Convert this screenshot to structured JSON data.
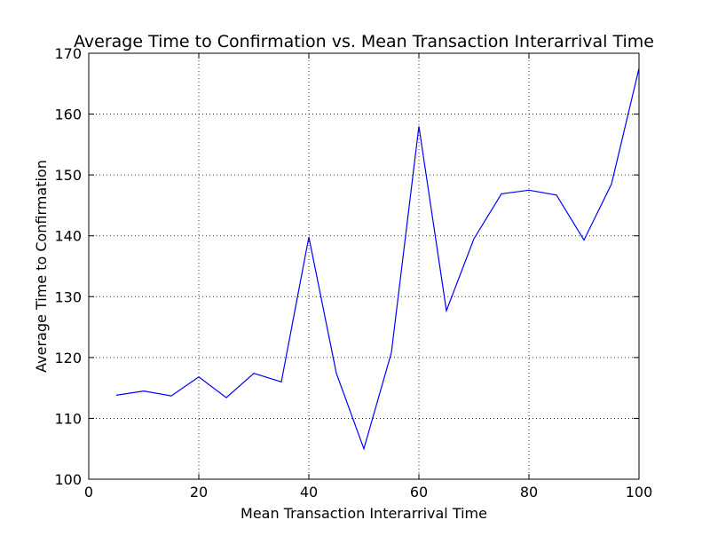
{
  "chart_data": {
    "type": "line",
    "title": "Average Time to Confirmation vs. Mean Transaction Interarrival Time",
    "xlabel": "Mean Transaction Interarrival Time",
    "ylabel": "Average Time to Confirmation",
    "xlim": [
      0,
      100
    ],
    "ylim": [
      100,
      170
    ],
    "xticks": [
      0,
      20,
      40,
      60,
      80,
      100
    ],
    "yticks": [
      100,
      110,
      120,
      130,
      140,
      150,
      160,
      170
    ],
    "grid": true,
    "grid_style": "dotted",
    "series": [
      {
        "color": "#0000ff",
        "x": [
          5,
          10,
          15,
          20,
          25,
          30,
          35,
          40,
          45,
          50,
          55,
          60,
          65,
          70,
          75,
          80,
          85,
          90,
          95,
          100
        ],
        "y": [
          113.8,
          114.5,
          113.7,
          116.8,
          113.4,
          117.4,
          116.0,
          139.8,
          117.4,
          105.0,
          120.8,
          158.0,
          127.7,
          139.5,
          146.9,
          147.5,
          146.7,
          139.3,
          148.5,
          167.5
        ]
      }
    ]
  }
}
